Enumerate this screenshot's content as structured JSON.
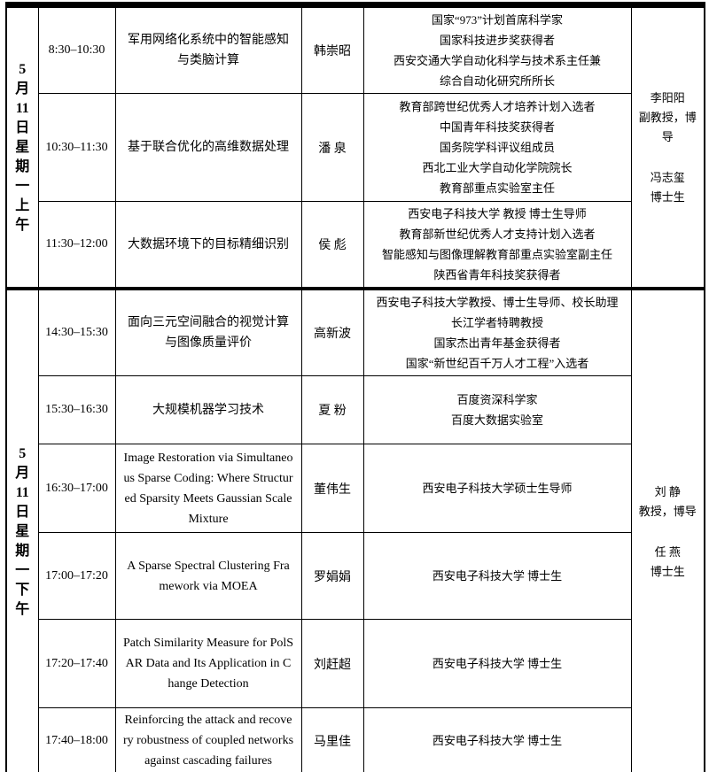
{
  "sections": [
    {
      "id": "morning",
      "date_label": "5月11日星期一上午",
      "date_tokens": [
        "5",
        "月",
        "11",
        "日",
        "星",
        "期",
        "一",
        "上",
        "午"
      ],
      "chairs": [
        {
          "name": "李阳阳",
          "title": "副教授，博导"
        },
        {
          "name": "冯志玺",
          "title": "博士生"
        }
      ],
      "rows": [
        {
          "time": "8:30–10:30",
          "title": "军用网络化系统中的智能感知与类脑计算",
          "speaker": "韩崇昭",
          "credentials": [
            "国家“973”计划首席科学家",
            "国家科技进步奖获得者",
            "西安交通大学自动化科学与技术系主任兼",
            "综合自动化研究所所长"
          ]
        },
        {
          "time": "10:30–11:30",
          "title": "基于联合优化的高维数据处理",
          "speaker": "潘 泉",
          "credentials": [
            "教育部跨世纪优秀人才培养计划入选者",
            "中国青年科技奖获得者",
            "国务院学科评议组成员",
            "西北工业大学自动化学院院长",
            "教育部重点实验室主任"
          ]
        },
        {
          "time": "11:30–12:00",
          "title": "大数据环境下的目标精细识别",
          "speaker": "侯 彪",
          "credentials": [
            "西安电子科技大学 教授 博士生导师",
            "教育部新世纪优秀人才支持计划入选者",
            "智能感知与图像理解教育部重点实验室副主任",
            "陕西省青年科技奖获得者"
          ]
        }
      ]
    },
    {
      "id": "afternoon",
      "date_label": "5月11日星期一下午",
      "date_tokens": [
        "5",
        "月",
        "11",
        "日",
        "星",
        "期",
        "一",
        "下",
        "午"
      ],
      "chairs": [
        {
          "name": "刘 静",
          "title": "教授，博导"
        },
        {
          "name": "任 燕",
          "title": "博士生"
        }
      ],
      "rows": [
        {
          "time": "14:30–15:30",
          "title": "面向三元空间融合的视觉计算与图像质量评价",
          "speaker": "高新波",
          "credentials": [
            "西安电子科技大学教授、博士生导师、校长助理",
            "长江学者特聘教授",
            "国家杰出青年基金获得者",
            "国家“新世纪百千万人才工程”入选者"
          ]
        },
        {
          "time": "15:30–16:30",
          "title": "大规模机器学习技术",
          "speaker": "夏 粉",
          "credentials": [
            "百度资深科学家",
            "百度大数据实验室"
          ]
        },
        {
          "time": "16:30–17:00",
          "title": "Image Restoration via Simultaneous Sparse Coding: Where Structured Sparsity Meets Gaussian Scale Mixture",
          "speaker": "董伟生",
          "credentials": [
            "西安电子科技大学硕士生导师"
          ]
        },
        {
          "time": "17:00–17:20",
          "title": "A Sparse Spectral Clustering Framework via MOEA",
          "speaker": "罗娟娟",
          "credentials": [
            "西安电子科技大学 博士生"
          ]
        },
        {
          "time": "17:20–17:40",
          "title": "Patch Similarity Measure for PolSAR Data and Its Application in Change Detection",
          "speaker": "刘赶超",
          "credentials": [
            "西安电子科技大学 博士生"
          ]
        },
        {
          "time": "17:40–18:00",
          "title": "Reinforcing the attack and recovery robustness of coupled networks against cascading failures",
          "speaker": "马里佳",
          "credentials": [
            "西安电子科技大学 博士生"
          ]
        }
      ]
    }
  ]
}
